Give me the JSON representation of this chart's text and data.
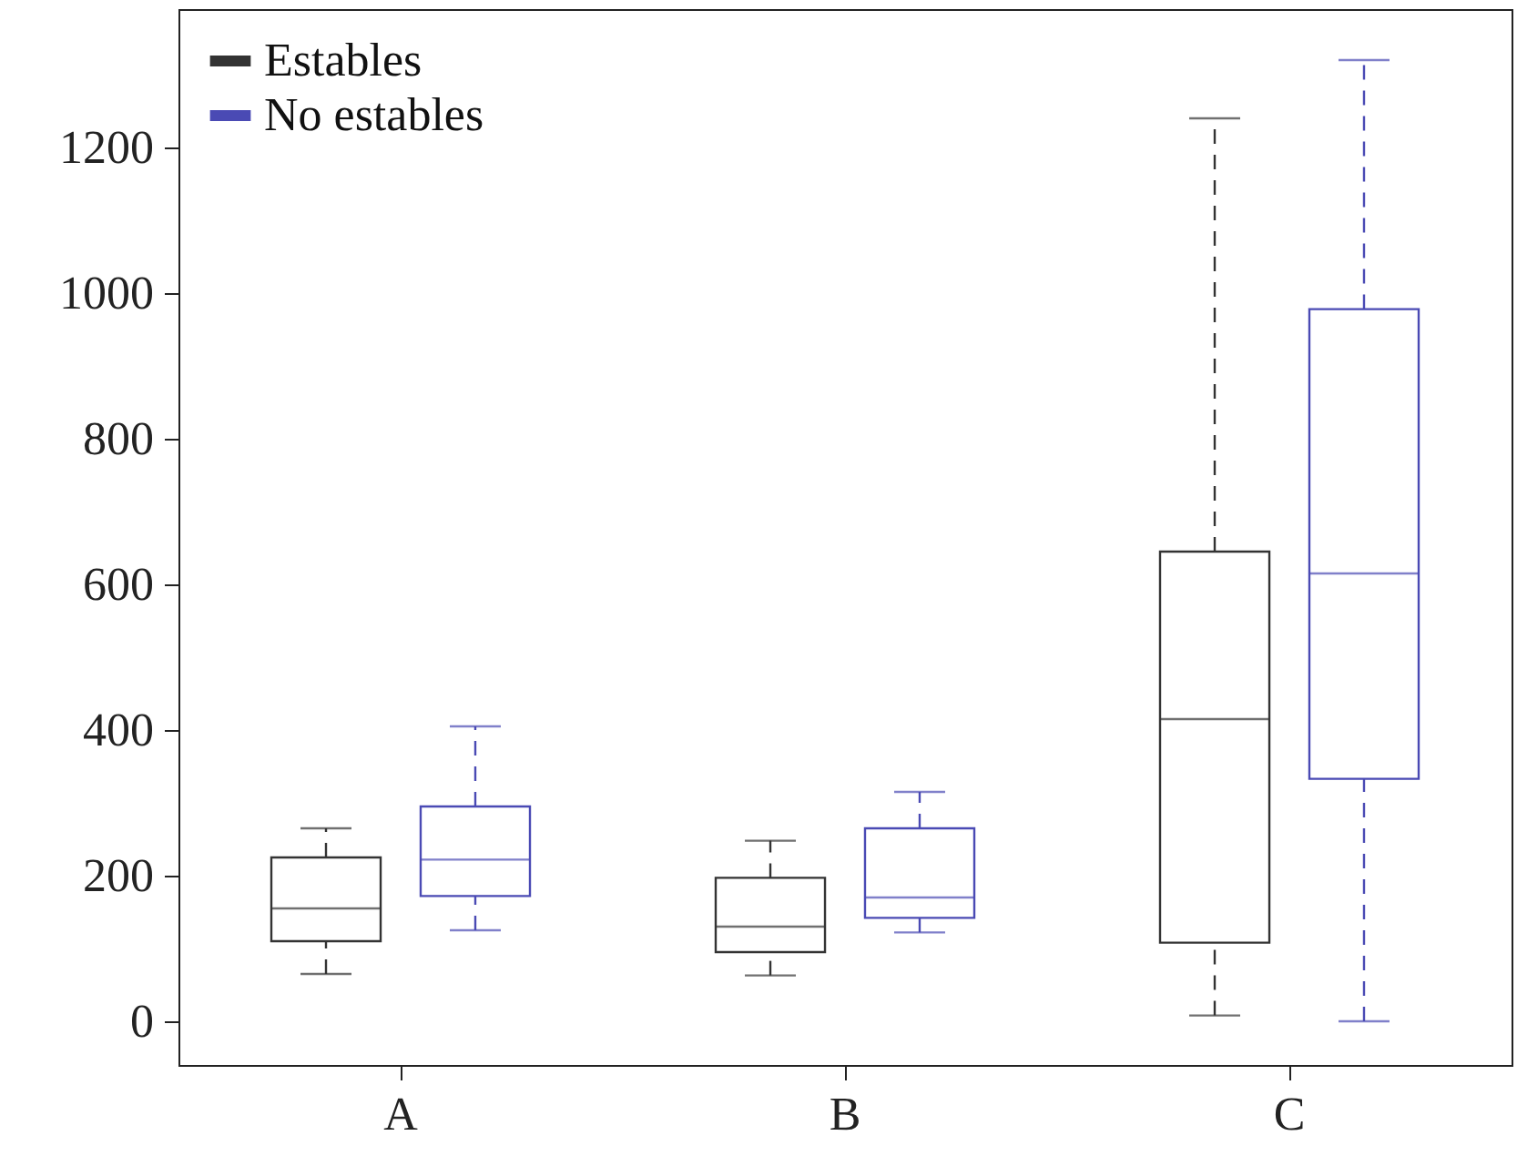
{
  "chart_data": {
    "type": "box",
    "categories": [
      "A",
      "B",
      "C"
    ],
    "series": [
      {
        "name": "Estables",
        "color": "#333333",
        "boxes": [
          {
            "low": 65,
            "q1": 110,
            "median": 155,
            "q3": 225,
            "high": 265
          },
          {
            "low": 63,
            "q1": 95,
            "median": 130,
            "q3": 197,
            "high": 248
          },
          {
            "low": 8,
            "q1": 108,
            "median": 415,
            "q3": 645,
            "high": 1240
          }
        ]
      },
      {
        "name": "No estables",
        "color": "#4a4ab4",
        "boxes": [
          {
            "low": 125,
            "q1": 172,
            "median": 222,
            "q3": 295,
            "high": 405
          },
          {
            "low": 122,
            "q1": 142,
            "median": 170,
            "q3": 265,
            "high": 315
          },
          {
            "low": 0,
            "q1": 333,
            "median": 615,
            "q3": 978,
            "high": 1320
          }
        ]
      }
    ],
    "ylim": [
      -60,
      1390
    ],
    "yticks": [
      0,
      200,
      400,
      600,
      800,
      1000,
      1200
    ],
    "legend": "top left",
    "line_style": "dashed",
    "grid": false
  }
}
